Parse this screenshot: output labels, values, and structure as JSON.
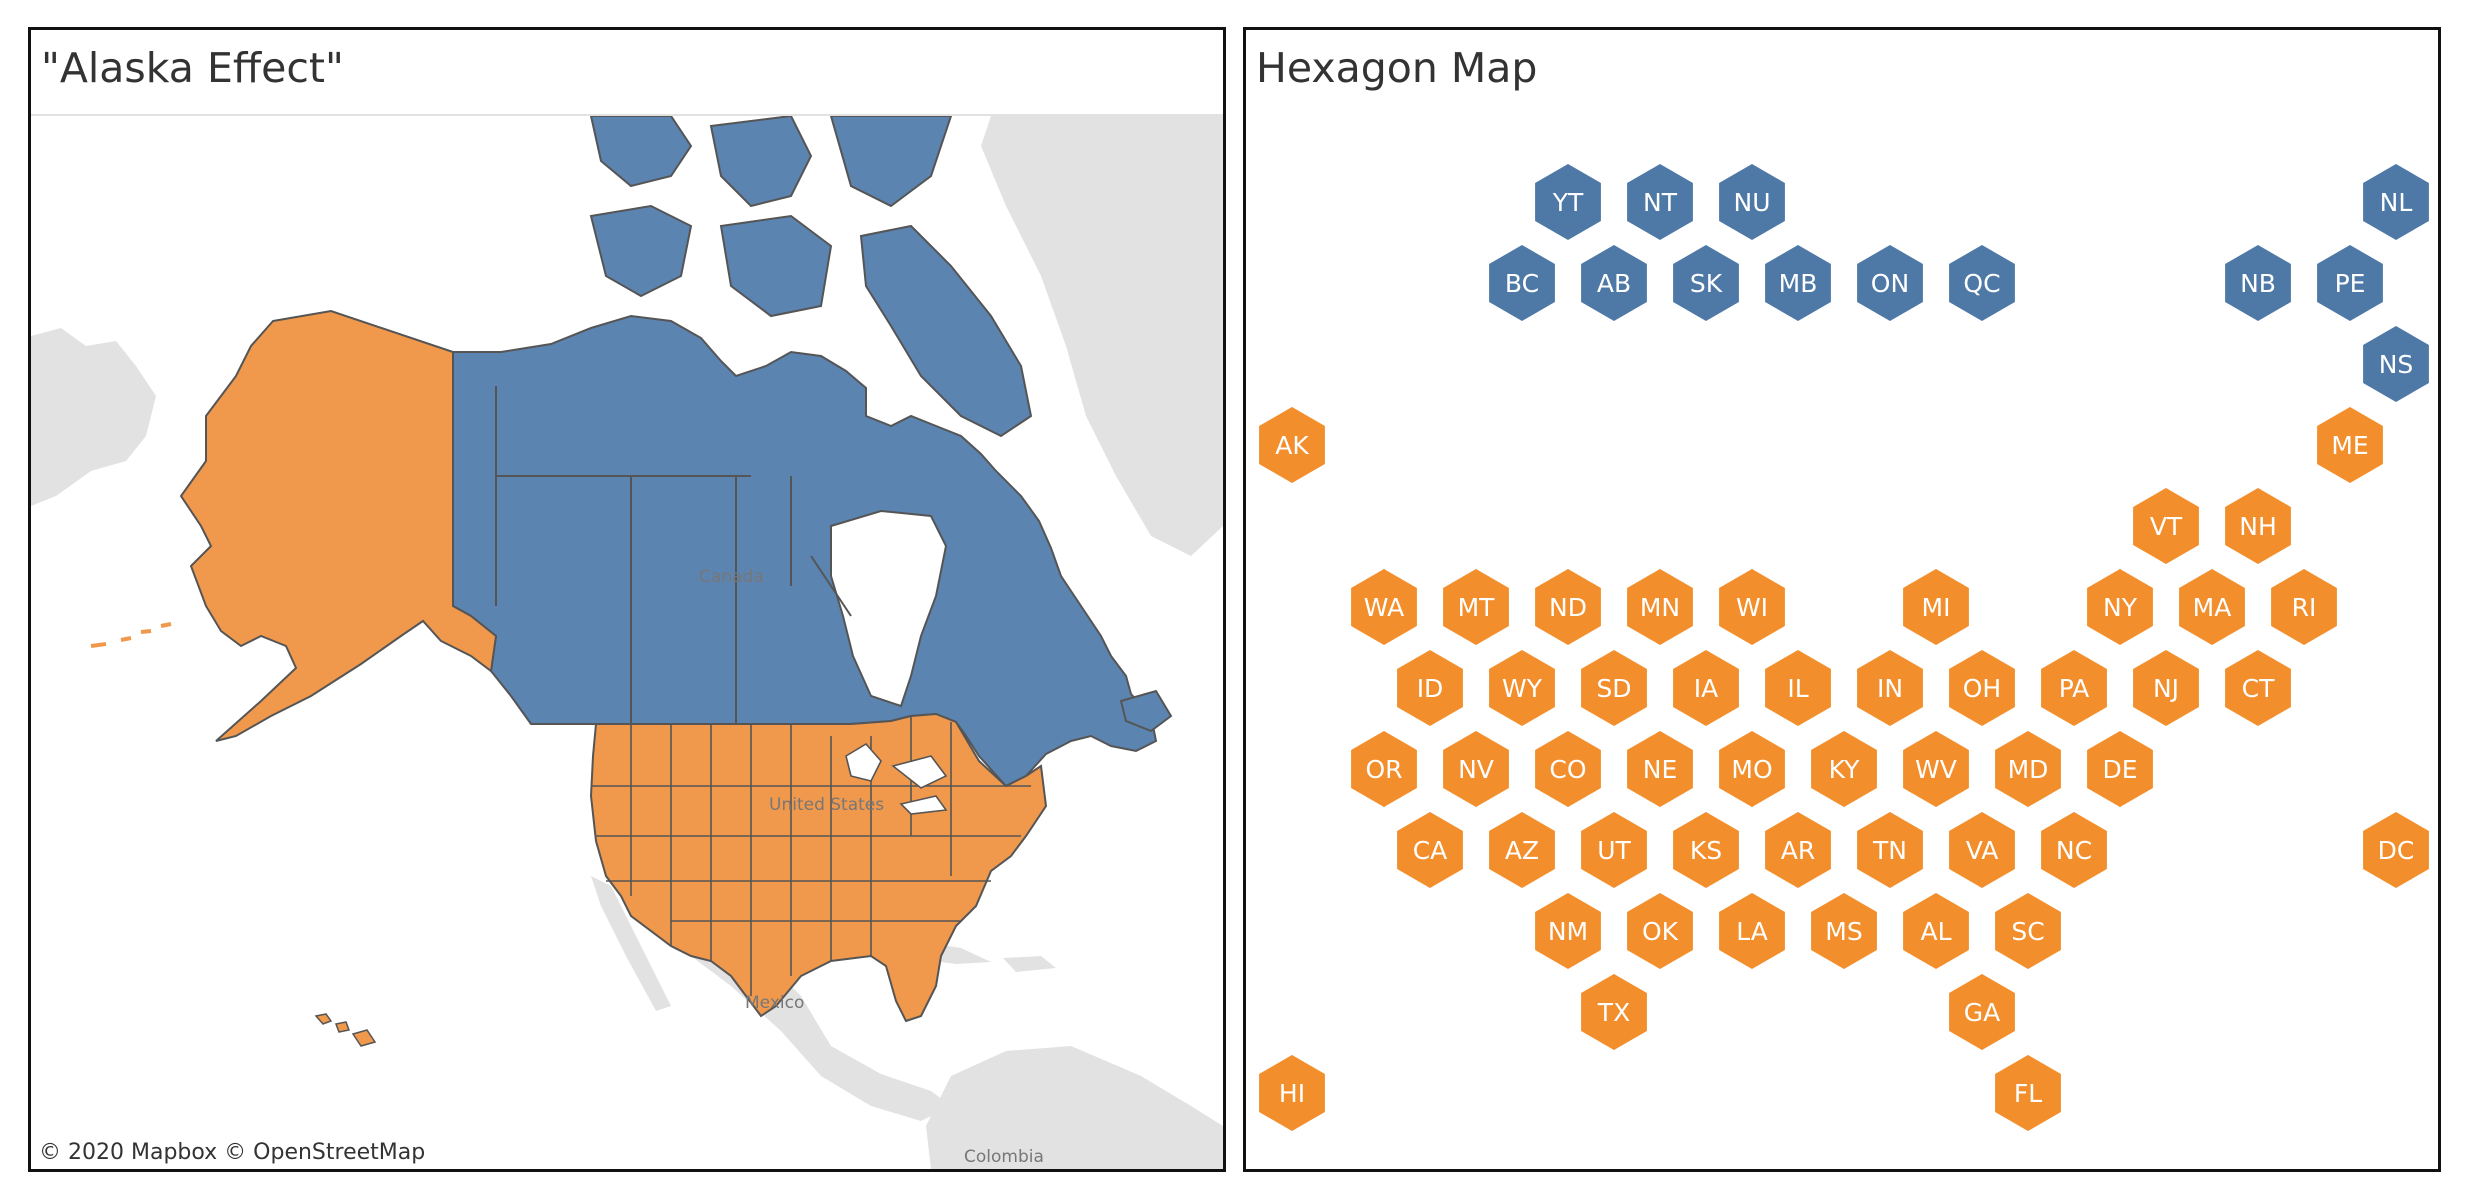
{
  "colors": {
    "canada": "#5b84b1",
    "us": "#f0994d",
    "land_other": "#e2e2e2",
    "water": "#ffffff",
    "hex_canada": "#4e79a7",
    "hex_us": "#f28e2b",
    "border": "#555555"
  },
  "map_panel": {
    "title": "\"Alaska Effect\"",
    "attribution": "© 2020 Mapbox  © OpenStreetMap",
    "place_labels": {
      "canada": "Canada",
      "united_states": "United States",
      "mexico": "Mexico",
      "colombia": "Colombia"
    }
  },
  "hex_panel": {
    "title": "Hexagon Map",
    "hexes": [
      {
        "label": "YT",
        "row": 0,
        "col": 3,
        "group": "canada"
      },
      {
        "label": "NT",
        "row": 0,
        "col": 4,
        "group": "canada"
      },
      {
        "label": "NU",
        "row": 0,
        "col": 5,
        "group": "canada"
      },
      {
        "label": "NL",
        "row": 0,
        "col": 12,
        "group": "canada"
      },
      {
        "label": "BC",
        "row": 1,
        "col": 2.5,
        "group": "canada"
      },
      {
        "label": "AB",
        "row": 1,
        "col": 3.5,
        "group": "canada"
      },
      {
        "label": "SK",
        "row": 1,
        "col": 4.5,
        "group": "canada"
      },
      {
        "label": "MB",
        "row": 1,
        "col": 5.5,
        "group": "canada"
      },
      {
        "label": "ON",
        "row": 1,
        "col": 6.5,
        "group": "canada"
      },
      {
        "label": "QC",
        "row": 1,
        "col": 7.5,
        "group": "canada"
      },
      {
        "label": "NB",
        "row": 1,
        "col": 10.5,
        "group": "canada"
      },
      {
        "label": "PE",
        "row": 1,
        "col": 11.5,
        "group": "canada"
      },
      {
        "label": "NS",
        "row": 2,
        "col": 12,
        "group": "canada"
      },
      {
        "label": "AK",
        "row": 3,
        "col": 0,
        "group": "us"
      },
      {
        "label": "ME",
        "row": 3,
        "col": 11.5,
        "group": "us"
      },
      {
        "label": "VT",
        "row": 4,
        "col": 9.5,
        "group": "us"
      },
      {
        "label": "NH",
        "row": 4,
        "col": 10.5,
        "group": "us"
      },
      {
        "label": "WA",
        "row": 5,
        "col": 1,
        "group": "us"
      },
      {
        "label": "MT",
        "row": 5,
        "col": 2,
        "group": "us"
      },
      {
        "label": "ND",
        "row": 5,
        "col": 3,
        "group": "us"
      },
      {
        "label": "MN",
        "row": 5,
        "col": 4,
        "group": "us"
      },
      {
        "label": "WI",
        "row": 5,
        "col": 5,
        "group": "us"
      },
      {
        "label": "MI",
        "row": 5,
        "col": 7,
        "group": "us"
      },
      {
        "label": "NY",
        "row": 5,
        "col": 9,
        "group": "us"
      },
      {
        "label": "MA",
        "row": 5,
        "col": 10,
        "group": "us"
      },
      {
        "label": "RI",
        "row": 5,
        "col": 11,
        "group": "us"
      },
      {
        "label": "ID",
        "row": 6,
        "col": 1.5,
        "group": "us"
      },
      {
        "label": "WY",
        "row": 6,
        "col": 2.5,
        "group": "us"
      },
      {
        "label": "SD",
        "row": 6,
        "col": 3.5,
        "group": "us"
      },
      {
        "label": "IA",
        "row": 6,
        "col": 4.5,
        "group": "us"
      },
      {
        "label": "IL",
        "row": 6,
        "col": 5.5,
        "group": "us"
      },
      {
        "label": "IN",
        "row": 6,
        "col": 6.5,
        "group": "us"
      },
      {
        "label": "OH",
        "row": 6,
        "col": 7.5,
        "group": "us"
      },
      {
        "label": "PA",
        "row": 6,
        "col": 8.5,
        "group": "us"
      },
      {
        "label": "NJ",
        "row": 6,
        "col": 9.5,
        "group": "us"
      },
      {
        "label": "CT",
        "row": 6,
        "col": 10.5,
        "group": "us"
      },
      {
        "label": "OR",
        "row": 7,
        "col": 1,
        "group": "us"
      },
      {
        "label": "NV",
        "row": 7,
        "col": 2,
        "group": "us"
      },
      {
        "label": "CO",
        "row": 7,
        "col": 3,
        "group": "us"
      },
      {
        "label": "NE",
        "row": 7,
        "col": 4,
        "group": "us"
      },
      {
        "label": "MO",
        "row": 7,
        "col": 5,
        "group": "us"
      },
      {
        "label": "KY",
        "row": 7,
        "col": 6,
        "group": "us"
      },
      {
        "label": "WV",
        "row": 7,
        "col": 7,
        "group": "us"
      },
      {
        "label": "MD",
        "row": 7,
        "col": 8,
        "group": "us"
      },
      {
        "label": "DE",
        "row": 7,
        "col": 9,
        "group": "us"
      },
      {
        "label": "CA",
        "row": 8,
        "col": 1.5,
        "group": "us"
      },
      {
        "label": "AZ",
        "row": 8,
        "col": 2.5,
        "group": "us"
      },
      {
        "label": "UT",
        "row": 8,
        "col": 3.5,
        "group": "us"
      },
      {
        "label": "KS",
        "row": 8,
        "col": 4.5,
        "group": "us"
      },
      {
        "label": "AR",
        "row": 8,
        "col": 5.5,
        "group": "us"
      },
      {
        "label": "TN",
        "row": 8,
        "col": 6.5,
        "group": "us"
      },
      {
        "label": "VA",
        "row": 8,
        "col": 7.5,
        "group": "us"
      },
      {
        "label": "NC",
        "row": 8,
        "col": 8.5,
        "group": "us"
      },
      {
        "label": "DC",
        "row": 8,
        "col": 12,
        "group": "us"
      },
      {
        "label": "NM",
        "row": 9,
        "col": 3,
        "group": "us"
      },
      {
        "label": "OK",
        "row": 9,
        "col": 4,
        "group": "us"
      },
      {
        "label": "LA",
        "row": 9,
        "col": 5,
        "group": "us"
      },
      {
        "label": "MS",
        "row": 9,
        "col": 6,
        "group": "us"
      },
      {
        "label": "AL",
        "row": 9,
        "col": 7,
        "group": "us"
      },
      {
        "label": "SC",
        "row": 9,
        "col": 8,
        "group": "us"
      },
      {
        "label": "TX",
        "row": 10,
        "col": 3.5,
        "group": "us"
      },
      {
        "label": "GA",
        "row": 10,
        "col": 7.5,
        "group": "us"
      },
      {
        "label": "HI",
        "row": 11,
        "col": 0,
        "group": "us"
      },
      {
        "label": "FL",
        "row": 11,
        "col": 8,
        "group": "us"
      }
    ]
  }
}
